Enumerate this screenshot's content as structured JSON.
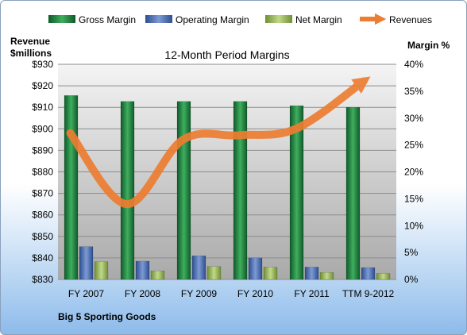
{
  "chart_data": {
    "type": "bar",
    "title": "12-Month Period Margins",
    "categories": [
      "FY 2007",
      "FY 2008",
      "FY 2009",
      "FY 2010",
      "FY 2011",
      "TTM 9-2012"
    ],
    "series": [
      {
        "name": "Gross Margin",
        "axis": "right",
        "kind": "bar",
        "color": "#1f7a3e",
        "values": [
          34.2,
          33.1,
          33.1,
          33.1,
          32.3,
          32.0
        ]
      },
      {
        "name": "Operating Margin",
        "axis": "right",
        "kind": "bar",
        "color": "#4a6fb5",
        "values": [
          6.1,
          3.4,
          4.4,
          4.0,
          2.3,
          2.2
        ]
      },
      {
        "name": "Net Margin",
        "axis": "right",
        "kind": "bar",
        "color": "#9bbb59",
        "values": [
          3.3,
          1.6,
          2.4,
          2.3,
          1.3,
          1.1
        ]
      },
      {
        "name": "Revenues",
        "axis": "left",
        "kind": "line",
        "color": "#ed7d31",
        "values": [
          898,
          865,
          895,
          897,
          900,
          922
        ]
      }
    ],
    "y_left": {
      "label_line1": "Revenue",
      "label_line2": "$millions",
      "min": 830,
      "max": 930,
      "step": 10,
      "prefix": "$"
    },
    "y_right": {
      "label": "Margin %",
      "min": 0,
      "max": 40,
      "step": 5,
      "suffix": "%"
    },
    "legend_position": "top",
    "grid": true
  },
  "footer": {
    "company": "Big 5 Sporting Goods"
  }
}
